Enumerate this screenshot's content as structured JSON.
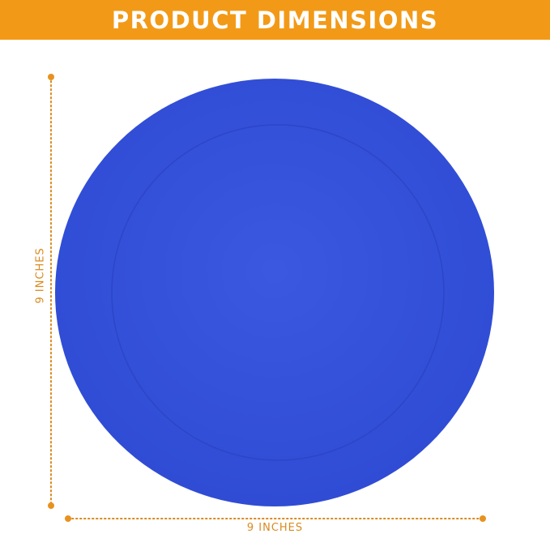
{
  "banner": {
    "title": "PRODUCT DIMENSIONS"
  },
  "dimensions": {
    "height_label": "9 INCHES",
    "width_label": "9 INCHES"
  },
  "colors": {
    "banner": "#F29A17",
    "plate": "#3552DA",
    "plate_rim_line": "#2B45C4",
    "dimension_line": "#D98A1F"
  }
}
